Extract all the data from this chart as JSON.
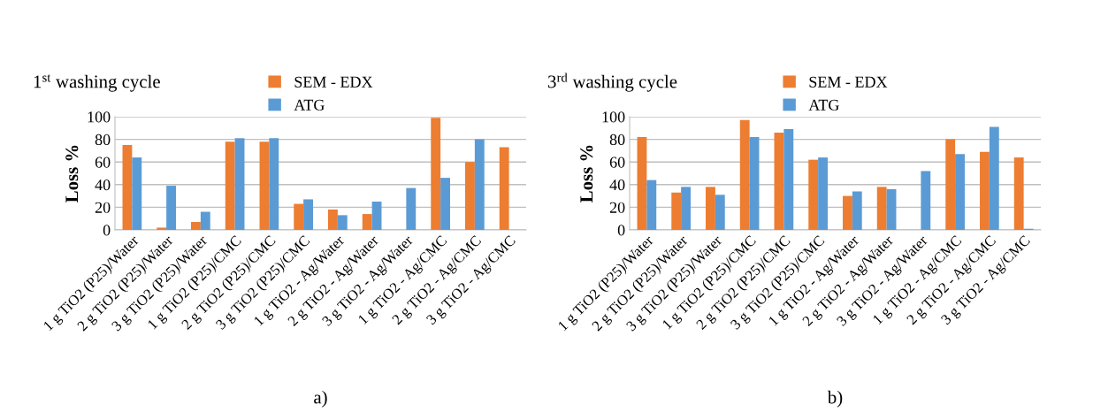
{
  "chart_data": [
    {
      "type": "bar",
      "title": "1$^{st}$ washing cycle",
      "ylabel": "Loss %",
      "categories": [
        "1 g TiO2 (P25)/Water",
        "2 g TiO2 (P25)/Water",
        "3 g TiO2 (P25)/Water",
        "1 g TiO2 (P25)/CMC",
        "2 g TiO2 (P25)/CMC",
        "3 g TiO2 (P25)/CMC",
        "1 g TiO2 - Ag/Water",
        "2 g TiO2 - Ag/Water",
        "3 g TiO2 - Ag/Water",
        "1 g TiO2 - Ag/CMC",
        "2 g TiO2 - Ag/CMC",
        "3 g TiO2 - Ag/CMC"
      ],
      "series": [
        {
          "name": "SEM - EDX",
          "color": "#ed7d31",
          "values": [
            75,
            2,
            7,
            78,
            78,
            23,
            18,
            14,
            null,
            99,
            60,
            73
          ]
        },
        {
          "name": "ATG",
          "color": "#5b9bd5",
          "values": [
            64,
            39,
            16,
            81,
            81,
            27,
            13,
            25,
            37,
            46,
            80,
            null
          ]
        }
      ],
      "ylim": [
        0,
        100
      ],
      "yticks": [
        0,
        20,
        40,
        60,
        80,
        100
      ],
      "grid": "y",
      "legend": "top",
      "annotations": [
        "a)"
      ]
    },
    {
      "type": "bar",
      "title": "3$^{rd}$ washing cycle",
      "ylabel": "Loss %",
      "categories": [
        "1 g TiO2 (P25)/Water",
        "2 g TiO2 (P25)/Water",
        "3 g TiO2 (P25)/Water",
        "1 g TiO2 (P25)/CMC",
        "2 g TiO2 (P25)/CMC",
        "3 g TiO2 (P25)/CMC",
        "1 g TiO2 - Ag/Water",
        "2 g TiO2 - Ag/Water",
        "3 g TiO2 - Ag/Water",
        "1 g TiO2 - Ag/CMC",
        "2 g TiO2 - Ag/CMC",
        "3 g TiO2 - Ag/CMC"
      ],
      "series": [
        {
          "name": "SEM - EDX",
          "color": "#ed7d31",
          "values": [
            82,
            33,
            38,
            97,
            86,
            62,
            30,
            38,
            null,
            80,
            69,
            64
          ]
        },
        {
          "name": "ATG",
          "color": "#5b9bd5",
          "values": [
            44,
            38,
            31,
            82,
            89,
            64,
            34,
            36,
            52,
            67,
            91,
            1
          ]
        }
      ],
      "ylim": [
        0,
        100
      ],
      "yticks": [
        0,
        20,
        40,
        60,
        80,
        100
      ],
      "grid": "y",
      "legend": "top",
      "annotations": [
        "b)"
      ]
    }
  ]
}
